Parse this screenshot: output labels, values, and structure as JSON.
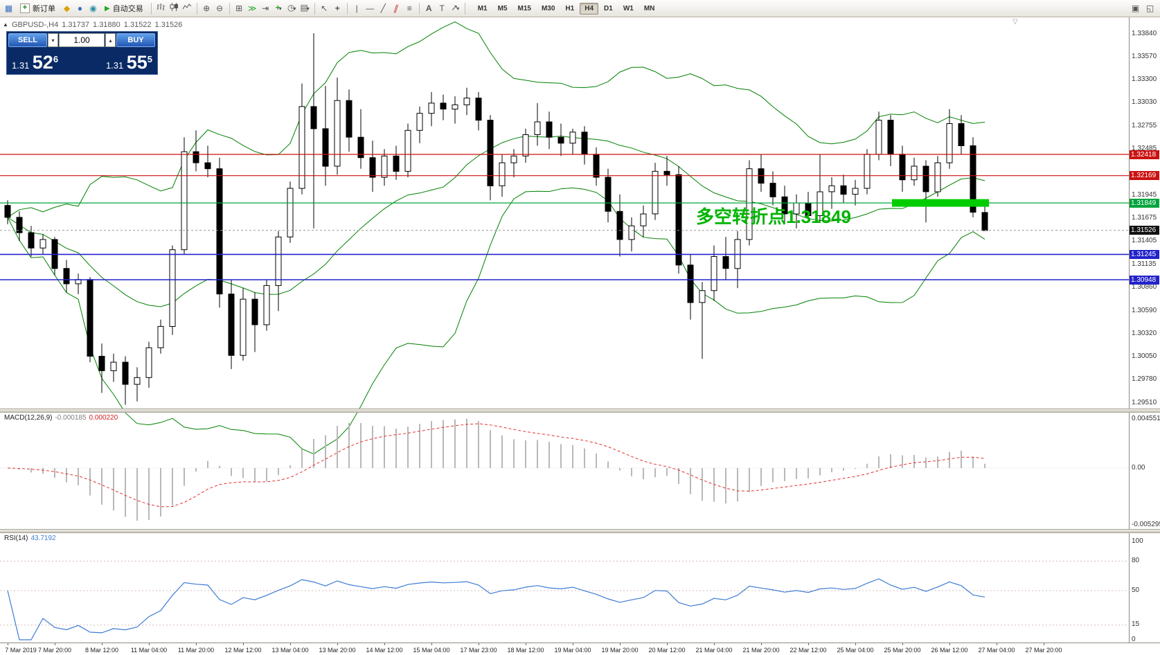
{
  "toolbar": {
    "new_order": "新订单",
    "auto_trading": "自动交易",
    "timeframes": [
      "M1",
      "M5",
      "M15",
      "M30",
      "H1",
      "H4",
      "D1",
      "W1",
      "MN"
    ],
    "active_timeframe": "H4"
  },
  "chart_header": {
    "symbol_period": "GBPUSD-,H4",
    "open": "1.31737",
    "high": "1.31880",
    "low": "1.31522",
    "close": "1.31526"
  },
  "trade_panel": {
    "sell_label": "SELL",
    "buy_label": "BUY",
    "volume": "1.00",
    "sell_price": {
      "big_prefix": "1.31",
      "big": "52",
      "sup": "6"
    },
    "buy_price": {
      "big_prefix": "1.31",
      "big": "55",
      "sup": "5"
    }
  },
  "annotation": {
    "text": "多空转折点1.31849"
  },
  "price_axis": {
    "regular": [
      "1.33840",
      "1.33570",
      "1.33300",
      "1.33030",
      "1.32755",
      "1.32485",
      "1.31945",
      "1.31675",
      "1.31405",
      "1.31135",
      "1.30860",
      "1.30590",
      "1.30320",
      "1.30050",
      "1.29780",
      "1.29510"
    ],
    "tags": [
      {
        "text": "1.32418",
        "value": 1.32418,
        "color": "#cc1111",
        "type": "resistance"
      },
      {
        "text": "1.32169",
        "value": 1.32169,
        "color": "#cc1111",
        "type": "resistance"
      },
      {
        "text": "1.31849",
        "value": 1.31849,
        "color": "#00a43c",
        "type": "turning-point"
      },
      {
        "text": "1.31526",
        "value": 1.31526,
        "color": "#111111",
        "type": "current-price"
      },
      {
        "text": "1.31245",
        "value": 1.31245,
        "color": "#2222cc",
        "type": "support"
      },
      {
        "text": "1.30948",
        "value": 1.30948,
        "color": "#2222cc",
        "type": "support"
      }
    ]
  },
  "macd_panel": {
    "name": "MACD(12,26,9)",
    "main_value": "-0.000185",
    "signal_value": "0.000220",
    "axis": [
      "0.004551",
      "0.00",
      "-0.005295"
    ]
  },
  "rsi_panel": {
    "name": "RSI(14)",
    "value": "43.7192",
    "axis": [
      "100",
      "80",
      "50",
      "15",
      "0"
    ],
    "levels": [
      80,
      50,
      15
    ]
  },
  "chart_data": {
    "type": "candlestick",
    "title": "GBPUSD- H4 chart with Bollinger Bands, MACD(12,26,9), RSI(14)",
    "price_range": {
      "top": 1.3384,
      "bottom": 1.2951
    },
    "x_labels": [
      "7 Mar 2019",
      "7 Mar 20:00",
      "8 Mar 12:00",
      "11 Mar 04:00",
      "11 Mar 20:00",
      "12 Mar 12:00",
      "13 Mar 04:00",
      "13 Mar 20:00",
      "14 Mar 12:00",
      "15 Mar 04:00",
      "17 Mar 23:00",
      "18 Mar 12:00",
      "19 Mar 04:00",
      "19 Mar 20:00",
      "20 Mar 12:00",
      "21 Mar 04:00",
      "21 Mar 20:00",
      "22 Mar 12:00",
      "25 Mar 04:00",
      "25 Mar 20:00",
      "26 Mar 12:00",
      "27 Mar 04:00",
      "27 Mar 20:00"
    ],
    "candles_ohlc": [
      [
        1.3182,
        1.3188,
        1.316,
        1.3168
      ],
      [
        1.3168,
        1.3175,
        1.314,
        1.315
      ],
      [
        1.315,
        1.3158,
        1.3122,
        1.3132
      ],
      [
        1.3132,
        1.3148,
        1.3125,
        1.3142
      ],
      [
        1.3142,
        1.3145,
        1.31,
        1.3108
      ],
      [
        1.3108,
        1.3118,
        1.308,
        1.309
      ],
      [
        1.309,
        1.3102,
        1.3078,
        1.3095
      ],
      [
        1.3095,
        1.3098,
        1.2998,
        1.3005
      ],
      [
        1.3005,
        1.302,
        1.2962,
        1.2988
      ],
      [
        1.2988,
        1.3008,
        1.2975,
        1.2998
      ],
      [
        1.2998,
        1.3005,
        1.2948,
        1.2972
      ],
      [
        1.2972,
        1.2992,
        1.2952,
        1.298
      ],
      [
        1.298,
        1.3022,
        1.2968,
        1.3015
      ],
      [
        1.3015,
        1.3048,
        1.3008,
        1.304
      ],
      [
        1.304,
        1.3135,
        1.303,
        1.313
      ],
      [
        1.313,
        1.3262,
        1.3125,
        1.3245
      ],
      [
        1.3245,
        1.327,
        1.3222,
        1.3232
      ],
      [
        1.3232,
        1.3252,
        1.3215,
        1.3225
      ],
      [
        1.3225,
        1.3238,
        1.3062,
        1.3078
      ],
      [
        1.3078,
        1.3095,
        1.299,
        1.3006
      ],
      [
        1.3006,
        1.3085,
        1.3,
        1.3072
      ],
      [
        1.3072,
        1.308,
        1.301,
        1.3042
      ],
      [
        1.3042,
        1.3095,
        1.3035,
        1.3088
      ],
      [
        1.3088,
        1.3152,
        1.3058,
        1.3145
      ],
      [
        1.3145,
        1.321,
        1.3138,
        1.3202
      ],
      [
        1.3202,
        1.3325,
        1.3195,
        1.3298
      ],
      [
        1.3298,
        1.3384,
        1.3155,
        1.3272
      ],
      [
        1.3272,
        1.3322,
        1.3205,
        1.3228
      ],
      [
        1.3228,
        1.3332,
        1.3218,
        1.3305
      ],
      [
        1.3305,
        1.3318,
        1.3245,
        1.3262
      ],
      [
        1.3262,
        1.3295,
        1.3225,
        1.3238
      ],
      [
        1.3238,
        1.3258,
        1.3198,
        1.3215
      ],
      [
        1.3215,
        1.3248,
        1.3205,
        1.324
      ],
      [
        1.324,
        1.3252,
        1.3212,
        1.3222
      ],
      [
        1.3222,
        1.3278,
        1.3215,
        1.327
      ],
      [
        1.327,
        1.3298,
        1.3255,
        1.329
      ],
      [
        1.329,
        1.3315,
        1.3275,
        1.3302
      ],
      [
        1.3302,
        1.3312,
        1.3282,
        1.3295
      ],
      [
        1.3295,
        1.331,
        1.3278,
        1.33
      ],
      [
        1.33,
        1.332,
        1.3288,
        1.3308
      ],
      [
        1.3308,
        1.3315,
        1.327,
        1.3282
      ],
      [
        1.3282,
        1.3288,
        1.3188,
        1.3205
      ],
      [
        1.3205,
        1.3242,
        1.3192,
        1.3232
      ],
      [
        1.3232,
        1.3248,
        1.3215,
        1.324
      ],
      [
        1.324,
        1.3272,
        1.3232,
        1.3265
      ],
      [
        1.3265,
        1.3302,
        1.3252,
        1.328
      ],
      [
        1.328,
        1.3292,
        1.3248,
        1.3262
      ],
      [
        1.3262,
        1.3278,
        1.324,
        1.3255
      ],
      [
        1.3255,
        1.3272,
        1.3242,
        1.3268
      ],
      [
        1.3268,
        1.3275,
        1.323,
        1.3242
      ],
      [
        1.3242,
        1.325,
        1.3205,
        1.3215
      ],
      [
        1.3215,
        1.3225,
        1.3162,
        1.3175
      ],
      [
        1.3175,
        1.3195,
        1.3122,
        1.3142
      ],
      [
        1.3142,
        1.3168,
        1.3128,
        1.3158
      ],
      [
        1.3158,
        1.3182,
        1.3145,
        1.3172
      ],
      [
        1.3172,
        1.3232,
        1.3165,
        1.3222
      ],
      [
        1.3222,
        1.324,
        1.3205,
        1.3218
      ],
      [
        1.3218,
        1.3228,
        1.3102,
        1.3112
      ],
      [
        1.3112,
        1.3125,
        1.3048,
        1.3068
      ],
      [
        1.3068,
        1.3092,
        1.3002,
        1.3082
      ],
      [
        1.3082,
        1.3135,
        1.307,
        1.3122
      ],
      [
        1.3122,
        1.3145,
        1.3095,
        1.3108
      ],
      [
        1.3108,
        1.3152,
        1.3085,
        1.3142
      ],
      [
        1.3142,
        1.3235,
        1.3135,
        1.3225
      ],
      [
        1.3225,
        1.3242,
        1.3198,
        1.3208
      ],
      [
        1.3208,
        1.3222,
        1.3182,
        1.3192
      ],
      [
        1.3192,
        1.3205,
        1.3162,
        1.3172
      ],
      [
        1.3172,
        1.3195,
        1.3155,
        1.3185
      ],
      [
        1.3185,
        1.3198,
        1.3162,
        1.317
      ],
      [
        1.317,
        1.3242,
        1.3162,
        1.3198
      ],
      [
        1.3198,
        1.3215,
        1.3178,
        1.3205
      ],
      [
        1.3205,
        1.3218,
        1.3185,
        1.3195
      ],
      [
        1.3195,
        1.3212,
        1.3182,
        1.3202
      ],
      [
        1.3202,
        1.3248,
        1.3195,
        1.3242
      ],
      [
        1.3242,
        1.3292,
        1.3235,
        1.3282
      ],
      [
        1.3282,
        1.3288,
        1.3228,
        1.3242
      ],
      [
        1.3242,
        1.3252,
        1.3198,
        1.3212
      ],
      [
        1.3212,
        1.3238,
        1.3205,
        1.3228
      ],
      [
        1.3228,
        1.3235,
        1.3162,
        1.3198
      ],
      [
        1.3198,
        1.324,
        1.3192,
        1.3232
      ],
      [
        1.3232,
        1.3295,
        1.3225,
        1.3278
      ],
      [
        1.3278,
        1.3288,
        1.3242,
        1.3252
      ],
      [
        1.3252,
        1.3262,
        1.3168,
        1.3174
      ],
      [
        1.31737,
        1.3188,
        1.31522,
        1.31526
      ]
    ],
    "overlays": {
      "bollinger_bands": {
        "period": 20,
        "deviation": 2,
        "color": "#008000"
      },
      "horizontal_lines": [
        {
          "price": 1.32418,
          "color": "#cc1111"
        },
        {
          "price": 1.32169,
          "color": "#cc1111"
        },
        {
          "price": 1.31849,
          "color": "#00a43c"
        },
        {
          "price": 1.31245,
          "color": "#2222cc"
        },
        {
          "price": 1.30948,
          "color": "#2222cc"
        }
      ],
      "highlight_box": {
        "price": 1.31849,
        "color": "#00cc00"
      },
      "current_price": 1.31526
    },
    "indicators": [
      {
        "name": "MACD",
        "params": [
          12,
          26,
          9
        ],
        "histogram_color": "#b8b8b8",
        "signal_color": "#e03030"
      },
      {
        "name": "RSI",
        "params": [
          14
        ],
        "color": "#3d7bd5"
      }
    ]
  }
}
